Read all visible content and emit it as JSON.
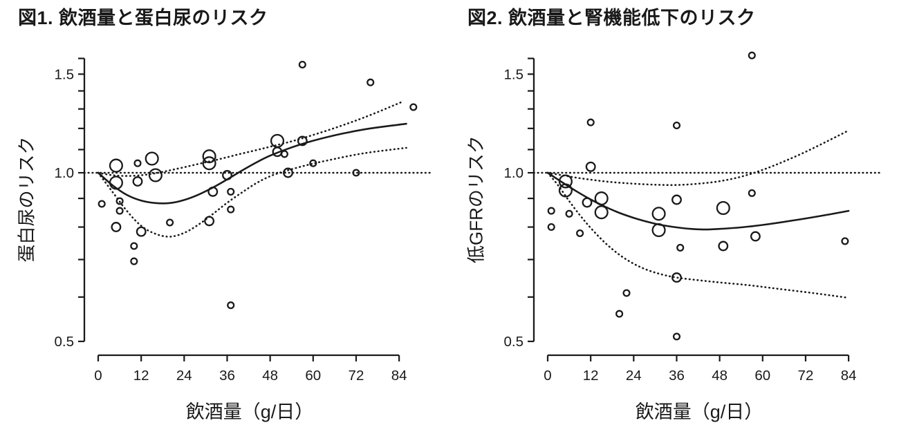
{
  "colors": {
    "stroke": "#1a1a1a",
    "background": "#ffffff"
  },
  "chart_data": [
    {
      "type": "scatter",
      "title": "図1. 飲酒量と蛋白尿のリスク",
      "xlabel": "飲酒量（g/日）",
      "ylabel": "蛋白尿のリスク",
      "y_scale": "log",
      "xlim": [
        0,
        84
      ],
      "ylim": [
        0.5,
        1.6
      ],
      "x_ticks": [
        0,
        12,
        24,
        36,
        48,
        60,
        72,
        84
      ],
      "y_ticks": [
        0.5,
        1.0,
        1.5
      ],
      "y_minor_ticks": [
        0.5,
        0.6,
        0.7,
        0.8,
        0.9,
        1.0,
        1.1,
        1.2,
        1.3,
        1.4,
        1.5,
        1.6
      ],
      "reference_line_y": 1.0,
      "grid": false,
      "legend": "none",
      "points_format": [
        "x_g_per_day",
        "risk",
        "marker_size"
      ],
      "points": [
        [
          1,
          0.88,
          "s"
        ],
        [
          5,
          1.03,
          "l"
        ],
        [
          5,
          0.96,
          "l"
        ],
        [
          6,
          0.89,
          "s"
        ],
        [
          6,
          0.855,
          "s"
        ],
        [
          5,
          0.8,
          "m"
        ],
        [
          11,
          1.04,
          "s"
        ],
        [
          11,
          0.965,
          "m"
        ],
        [
          12,
          0.785,
          "m"
        ],
        [
          10,
          0.74,
          "s"
        ],
        [
          10,
          0.695,
          "s"
        ],
        [
          15,
          1.06,
          "l"
        ],
        [
          16,
          0.99,
          "l"
        ],
        [
          20,
          0.815,
          "s"
        ],
        [
          31,
          1.07,
          "l"
        ],
        [
          31,
          1.04,
          "l"
        ],
        [
          32,
          0.925,
          "m"
        ],
        [
          31,
          0.82,
          "m"
        ],
        [
          36,
          0.99,
          "m"
        ],
        [
          37,
          0.925,
          "s"
        ],
        [
          37,
          0.86,
          "s"
        ],
        [
          37,
          0.58,
          "s"
        ],
        [
          50,
          1.14,
          "l"
        ],
        [
          50,
          1.09,
          "m"
        ],
        [
          52,
          1.08,
          "s"
        ],
        [
          53,
          1.0,
          "m"
        ],
        [
          57,
          1.14,
          "m"
        ],
        [
          57,
          1.56,
          "s"
        ],
        [
          60,
          1.04,
          "s"
        ],
        [
          72,
          1.0,
          "s"
        ],
        [
          76,
          1.45,
          "s"
        ],
        [
          88,
          1.31,
          "s"
        ]
      ],
      "fit_line": [
        [
          0,
          1.0
        ],
        [
          4,
          0.95
        ],
        [
          8,
          0.913
        ],
        [
          12,
          0.892
        ],
        [
          16,
          0.883
        ],
        [
          20,
          0.883
        ],
        [
          24,
          0.894
        ],
        [
          28,
          0.914
        ],
        [
          32,
          0.941
        ],
        [
          36,
          0.973
        ],
        [
          40,
          1.008
        ],
        [
          44,
          1.042
        ],
        [
          48,
          1.073
        ],
        [
          54,
          1.11
        ],
        [
          60,
          1.141
        ],
        [
          68,
          1.174
        ],
        [
          76,
          1.2
        ],
        [
          86,
          1.223
        ]
      ],
      "ci_upper": [
        [
          0,
          1.0
        ],
        [
          4,
          0.99
        ],
        [
          8,
          0.987
        ],
        [
          12,
          0.99
        ],
        [
          16,
          0.998
        ],
        [
          20,
          1.01
        ],
        [
          24,
          1.023
        ],
        [
          28,
          1.037
        ],
        [
          32,
          1.051
        ],
        [
          36,
          1.066
        ],
        [
          40,
          1.082
        ],
        [
          44,
          1.097
        ],
        [
          48,
          1.113
        ],
        [
          54,
          1.138
        ],
        [
          60,
          1.168
        ],
        [
          68,
          1.214
        ],
        [
          76,
          1.268
        ],
        [
          85,
          1.34
        ]
      ],
      "ci_lower": [
        [
          0,
          1.0
        ],
        [
          4,
          0.924
        ],
        [
          8,
          0.855
        ],
        [
          12,
          0.804
        ],
        [
          16,
          0.778
        ],
        [
          20,
          0.769
        ],
        [
          24,
          0.781
        ],
        [
          28,
          0.808
        ],
        [
          32,
          0.844
        ],
        [
          36,
          0.884
        ],
        [
          40,
          0.921
        ],
        [
          44,
          0.957
        ],
        [
          48,
          0.986
        ],
        [
          52,
          1.006
        ],
        [
          58,
          1.031
        ],
        [
          64,
          1.052
        ],
        [
          74,
          1.083
        ],
        [
          86,
          1.108
        ]
      ]
    },
    {
      "type": "scatter",
      "title": "図2. 飲酒量と腎機能低下のリスク",
      "xlabel": "飲酒量（g/日）",
      "ylabel": "低GFRのリスク",
      "y_scale": "log",
      "xlim": [
        0,
        84
      ],
      "ylim": [
        0.5,
        1.6
      ],
      "x_ticks": [
        0,
        12,
        24,
        36,
        48,
        60,
        72,
        84
      ],
      "y_ticks": [
        0.5,
        1.0,
        1.5
      ],
      "y_minor_ticks": [
        0.5,
        0.6,
        0.7,
        0.8,
        0.9,
        1.0,
        1.1,
        1.2,
        1.3,
        1.4,
        1.5,
        1.6
      ],
      "reference_line_y": 1.0,
      "grid": false,
      "legend": "none",
      "points_format": [
        "x_g_per_day",
        "risk",
        "marker_size"
      ],
      "points": [
        [
          1,
          0.855,
          "s"
        ],
        [
          1,
          0.8,
          "s"
        ],
        [
          5,
          0.965,
          "l"
        ],
        [
          5,
          0.93,
          "l"
        ],
        [
          6,
          0.845,
          "s"
        ],
        [
          9,
          0.78,
          "s"
        ],
        [
          11,
          0.885,
          "m"
        ],
        [
          12,
          1.23,
          "s"
        ],
        [
          12,
          1.025,
          "m"
        ],
        [
          15,
          0.9,
          "l"
        ],
        [
          15,
          0.85,
          "l"
        ],
        [
          20,
          0.56,
          "s"
        ],
        [
          22,
          0.61,
          "s"
        ],
        [
          31,
          0.845,
          "l"
        ],
        [
          31,
          0.79,
          "l"
        ],
        [
          36,
          0.895,
          "m"
        ],
        [
          36,
          1.215,
          "s"
        ],
        [
          36,
          0.65,
          "m"
        ],
        [
          37,
          0.735,
          "s"
        ],
        [
          36,
          0.51,
          "s"
        ],
        [
          49,
          0.865,
          "l"
        ],
        [
          49,
          0.74,
          "m"
        ],
        [
          57,
          1.62,
          "s"
        ],
        [
          57,
          0.92,
          "s"
        ],
        [
          58,
          0.77,
          "m"
        ],
        [
          83,
          0.755,
          "s"
        ]
      ],
      "fit_line": [
        [
          0,
          1.0
        ],
        [
          4,
          0.962
        ],
        [
          8,
          0.927
        ],
        [
          12,
          0.896
        ],
        [
          16,
          0.87
        ],
        [
          20,
          0.848
        ],
        [
          24,
          0.831
        ],
        [
          28,
          0.817
        ],
        [
          32,
          0.806
        ],
        [
          36,
          0.799
        ],
        [
          40,
          0.794
        ],
        [
          44,
          0.792
        ],
        [
          48,
          0.794
        ],
        [
          54,
          0.799
        ],
        [
          60,
          0.807
        ],
        [
          68,
          0.821
        ],
        [
          76,
          0.837
        ],
        [
          84,
          0.855
        ]
      ],
      "ci_upper": [
        [
          0,
          1.0
        ],
        [
          4,
          0.99
        ],
        [
          8,
          0.98
        ],
        [
          12,
          0.972
        ],
        [
          16,
          0.965
        ],
        [
          20,
          0.96
        ],
        [
          24,
          0.956
        ],
        [
          30,
          0.952
        ],
        [
          36,
          0.951
        ],
        [
          42,
          0.956
        ],
        [
          48,
          0.966
        ],
        [
          54,
          0.984
        ],
        [
          60,
          1.012
        ],
        [
          66,
          1.048
        ],
        [
          72,
          1.09
        ],
        [
          78,
          1.138
        ],
        [
          84,
          1.19
        ]
      ],
      "ci_lower": [
        [
          0,
          1.0
        ],
        [
          3,
          0.948
        ],
        [
          6,
          0.89
        ],
        [
          9,
          0.84
        ],
        [
          12,
          0.797
        ],
        [
          16,
          0.75
        ],
        [
          20,
          0.714
        ],
        [
          24,
          0.688
        ],
        [
          28,
          0.67
        ],
        [
          32,
          0.658
        ],
        [
          36,
          0.65
        ],
        [
          42,
          0.643
        ],
        [
          48,
          0.637
        ],
        [
          56,
          0.63
        ],
        [
          64,
          0.621
        ],
        [
          74,
          0.61
        ],
        [
          84,
          0.598
        ]
      ]
    }
  ]
}
